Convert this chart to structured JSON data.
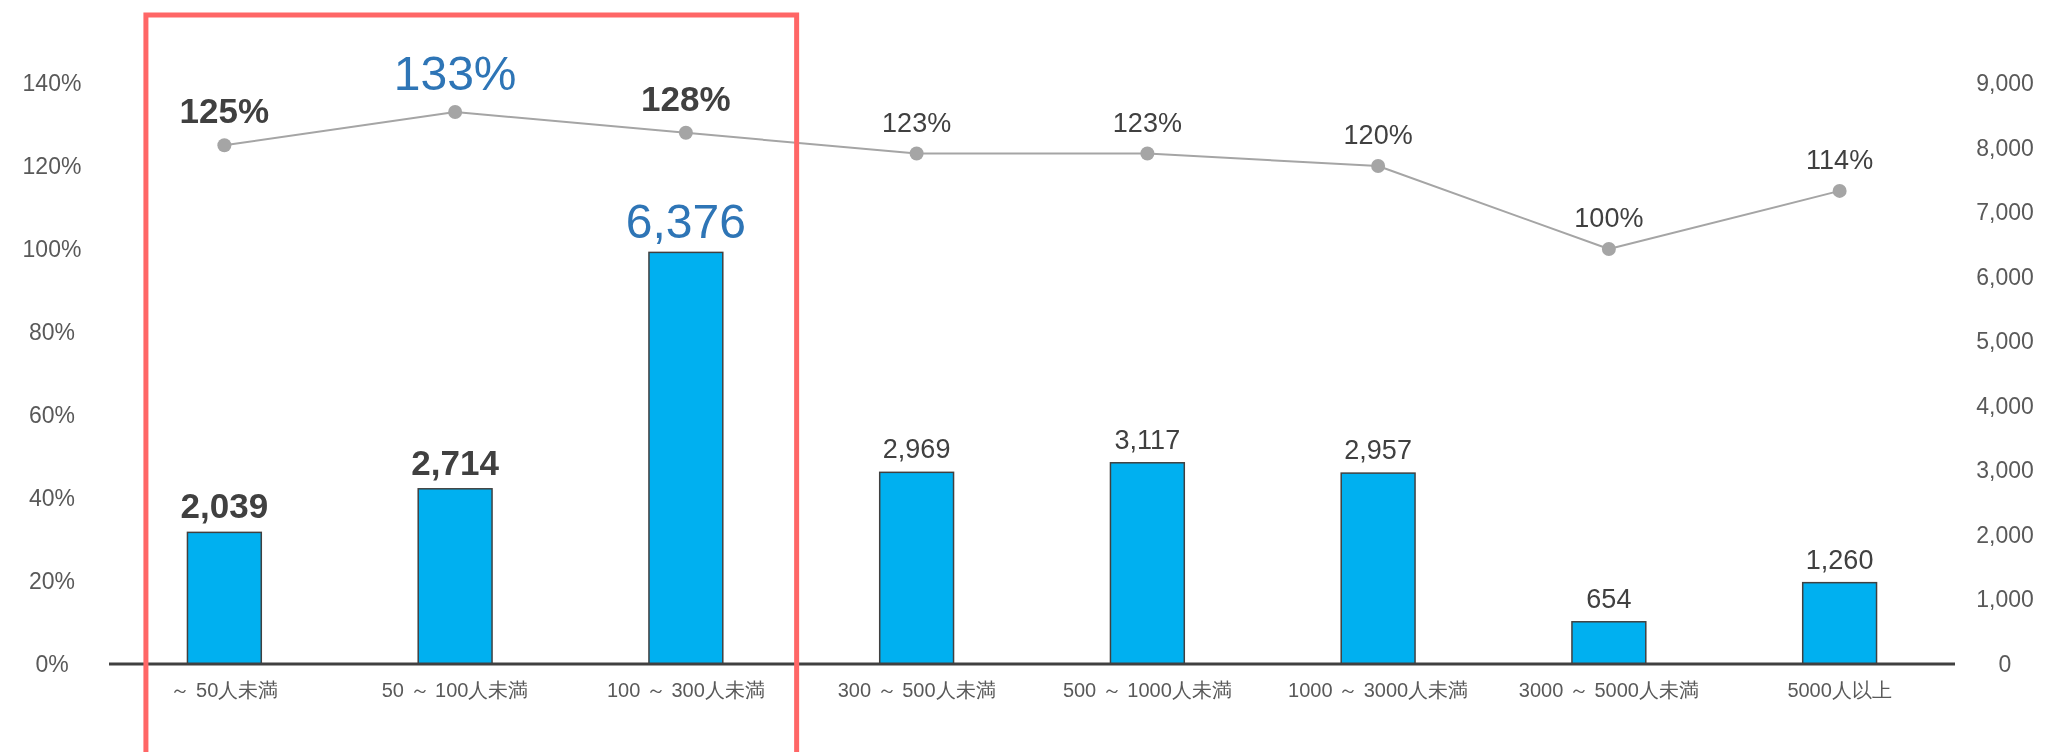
{
  "chart_data": {
    "type": "bar",
    "categories": [
      "～ 50人未満",
      "50 ～ 100人未満",
      "100 ～ 300人未満",
      "300 ～ 500人未満",
      "500 ～ 1000人未満",
      "1000 ～ 3000人未満",
      "3000 ～ 5000人未満",
      "5000人以上"
    ],
    "series": [
      {
        "axis": "y2",
        "color": "#00b0f0",
        "values": [
          2039,
          2714,
          6376,
          2969,
          3117,
          2957,
          654,
          1260
        ],
        "value_labels": [
          "2,039",
          "2,714",
          "6,376",
          "2,969",
          "3,117",
          "2,957",
          "654",
          "1,260"
        ]
      },
      {
        "type": "line",
        "axis": "y",
        "color": "#a5a5a5",
        "marker": "circle",
        "line_style": "solid",
        "values": [
          125,
          133,
          128,
          123,
          123,
          120,
          100,
          114
        ],
        "value_labels": [
          "125%",
          "133%",
          "128%",
          "123%",
          "123%",
          "120%",
          "100%",
          "114%"
        ]
      }
    ],
    "ylim": [
      0,
      140
    ],
    "yticks": [
      {
        "value": 0,
        "label": "0%"
      },
      {
        "value": 20,
        "label": "20%"
      },
      {
        "value": 40,
        "label": "40%"
      },
      {
        "value": 60,
        "label": "60%"
      },
      {
        "value": 80,
        "label": "80%"
      },
      {
        "value": 100,
        "label": "100%"
      },
      {
        "value": 120,
        "label": "120%"
      },
      {
        "value": 140,
        "label": "140%"
      }
    ],
    "y2lim": [
      0,
      9000
    ],
    "y2ticks": [
      0,
      {
        "value": 1000,
        "label": "1,000"
      },
      {
        "value": 2000,
        "label": "2,000"
      },
      {
        "value": 3000,
        "label": "3,000"
      },
      {
        "value": 4000,
        "label": "4,000"
      },
      {
        "value": 5000,
        "label": "5,000"
      },
      {
        "value": 6000,
        "label": "6,000"
      },
      {
        "value": 7000,
        "label": "7,000"
      },
      {
        "value": 8000,
        "label": "8,000"
      },
      {
        "value": 9000,
        "label": "9,000"
      }
    ],
    "grid": false
  }
}
